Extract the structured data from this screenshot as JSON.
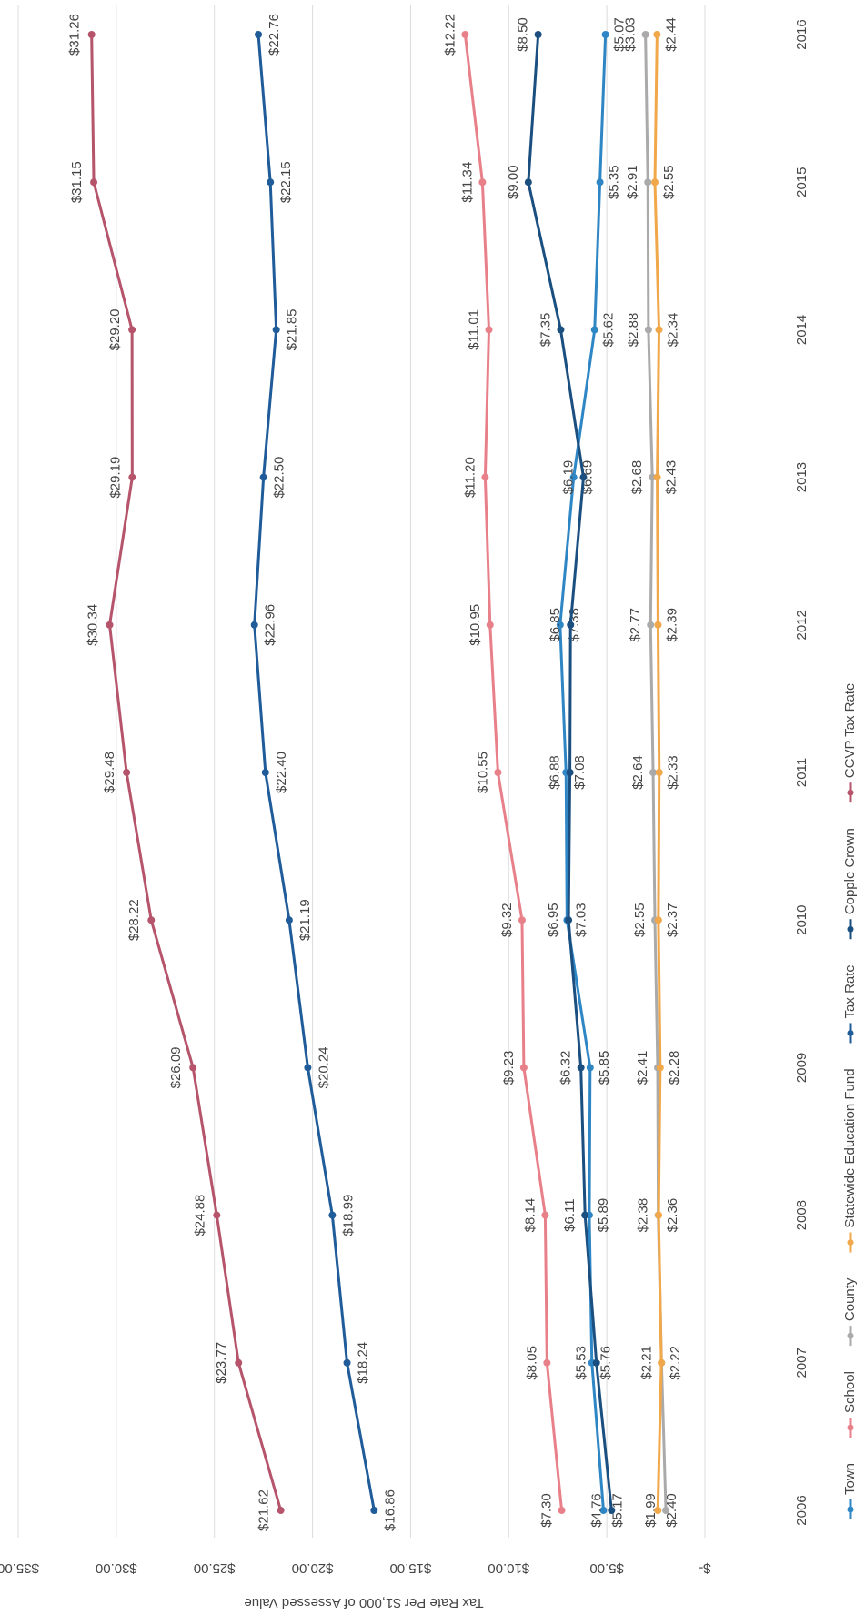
{
  "chart_data": {
    "type": "line",
    "y_label": "Tax Rate Per $1,000 of Assessed Value",
    "categories": [
      "2006",
      "2007",
      "2008",
      "2009",
      "2010",
      "2011",
      "2012",
      "2013",
      "2014",
      "2015",
      "2016"
    ],
    "ylim": [
      0,
      35
    ],
    "yticks": [
      {
        "value": 0,
        "label": "$-"
      },
      {
        "value": 5,
        "label": "$5.00"
      },
      {
        "value": 10,
        "label": "$10.00"
      },
      {
        "value": 15,
        "label": "$15.00"
      },
      {
        "value": 20,
        "label": "$20.00"
      },
      {
        "value": 25,
        "label": "$25.00"
      },
      {
        "value": 30,
        "label": "$30.00"
      },
      {
        "value": 35,
        "label": "$35.00"
      }
    ],
    "grid": true,
    "series": [
      {
        "name": "Town",
        "color": "#2f86c4",
        "values": [
          5.17,
          5.76,
          5.89,
          5.85,
          7.03,
          7.08,
          7.38,
          6.69,
          5.62,
          5.35,
          5.07
        ],
        "value_labels": [
          "$5.17",
          "$5.76",
          "$5.89",
          "$5.85",
          "$7.03",
          "$7.08",
          "$7.38",
          "$6.69",
          "$5.62",
          "$5.35",
          "$5.07"
        ]
      },
      {
        "name": "School",
        "color": "#e8808a",
        "values": [
          7.3,
          8.05,
          8.14,
          9.23,
          9.32,
          10.55,
          10.95,
          11.2,
          11.01,
          11.34,
          12.22
        ],
        "value_labels": [
          "$7.30",
          "$8.05",
          "$8.14",
          "$9.23",
          "$9.32",
          "$10.55",
          "$10.95",
          "$11.20",
          "$11.01",
          "$11.34",
          "$12.22"
        ]
      },
      {
        "name": "County",
        "color": "#aaaaaa",
        "values": [
          1.99,
          2.21,
          2.38,
          2.41,
          2.55,
          2.64,
          2.77,
          2.68,
          2.88,
          2.91,
          3.03
        ],
        "value_labels": [
          "$1.99",
          "$2.21",
          "$2.38",
          "$2.41",
          "$2.55",
          "$2.64",
          "$2.77",
          "$2.68",
          "$2.88",
          "$2.91",
          "$3.03"
        ]
      },
      {
        "name": "Statewide Education Fund",
        "color": "#f0a84a",
        "values": [
          2.4,
          2.22,
          2.36,
          2.28,
          2.37,
          2.33,
          2.39,
          2.43,
          2.34,
          2.55,
          2.44
        ],
        "value_labels": [
          "$2.40",
          "$2.22",
          "$2.36",
          "$2.28",
          "$2.37",
          "$2.33",
          "$2.39",
          "$2.43",
          "$2.34",
          "$2.55",
          "$2.44"
        ]
      },
      {
        "name": "Tax Rate",
        "color": "#1f5c99",
        "values": [
          16.86,
          18.24,
          18.99,
          20.24,
          21.19,
          22.4,
          22.96,
          22.5,
          21.85,
          22.15,
          22.76
        ],
        "value_labels": [
          "$16.86",
          "$18.24",
          "$18.99",
          "$20.24",
          "$21.19",
          "$22.40",
          "$22.96",
          "$22.50",
          "$21.85",
          "$22.15",
          "$22.76"
        ]
      },
      {
        "name": "Copple Crown",
        "color": "#1a4f80",
        "values": [
          4.76,
          5.53,
          6.11,
          6.32,
          6.95,
          6.88,
          6.85,
          6.19,
          7.35,
          9.0,
          8.5
        ],
        "value_labels": [
          "$4.76",
          "$5.53",
          "$6.11",
          "$6.32",
          "$6.95",
          "$6.88",
          "$6.85",
          "$6.19",
          "$7.35",
          "$9.00",
          "$8.50"
        ]
      },
      {
        "name": "CCVP Tax Rate",
        "color": "#b5546a",
        "values": [
          21.62,
          23.77,
          24.88,
          26.09,
          28.22,
          29.48,
          30.34,
          29.19,
          29.2,
          31.15,
          31.26
        ],
        "value_labels": [
          "$21.62",
          "$23.77",
          "$24.88",
          "$26.09",
          "$28.22",
          "$29.48",
          "$30.34",
          "$29.19",
          "$29.20",
          "$31.15",
          "$31.26"
        ]
      }
    ]
  }
}
